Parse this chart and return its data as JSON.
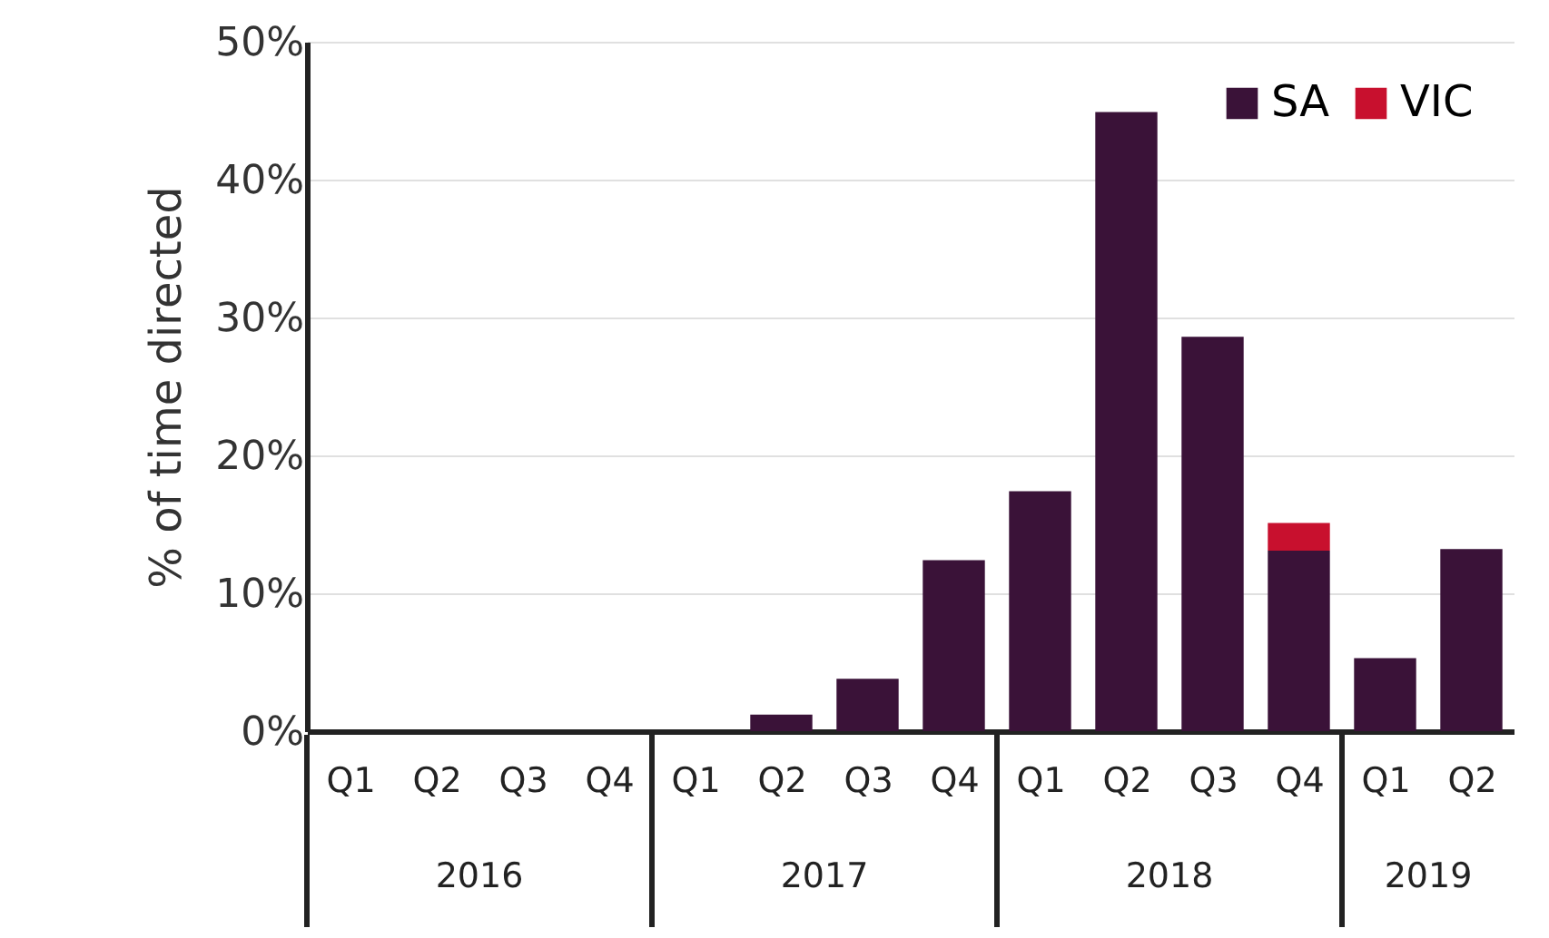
{
  "chart_data": {
    "type": "bar",
    "stacked": true,
    "ylabel": "% of time directed",
    "categories": [
      "Q1",
      "Q2",
      "Q3",
      "Q4",
      "Q1",
      "Q2",
      "Q3",
      "Q4",
      "Q1",
      "Q2",
      "Q3",
      "Q4",
      "Q1",
      "Q2"
    ],
    "series": [
      {
        "name": "SA",
        "color": "#3a1238",
        "values": [
          null,
          null,
          null,
          null,
          null,
          1.2,
          3.8,
          12.4,
          17.4,
          44.9,
          28.6,
          13.1,
          5.3,
          13.2
        ]
      },
      {
        "name": "VIC",
        "color": "#c8102e",
        "values": [
          null,
          null,
          null,
          null,
          null,
          null,
          null,
          null,
          null,
          null,
          null,
          2.0,
          null,
          null
        ]
      }
    ],
    "annotations": [
      "2016",
      "2017",
      "2018",
      "2019"
    ],
    "ylim": [
      0,
      50
    ],
    "yticks": [
      {
        "value": 0,
        "label": "0%"
      },
      {
        "value": 10,
        "label": "10%"
      },
      {
        "value": 20,
        "label": "20%"
      },
      {
        "value": 30,
        "label": "30%"
      },
      {
        "value": 40,
        "label": "40%"
      },
      {
        "value": 50,
        "label": "50%"
      }
    ],
    "grid": "y",
    "legend": "top right"
  }
}
